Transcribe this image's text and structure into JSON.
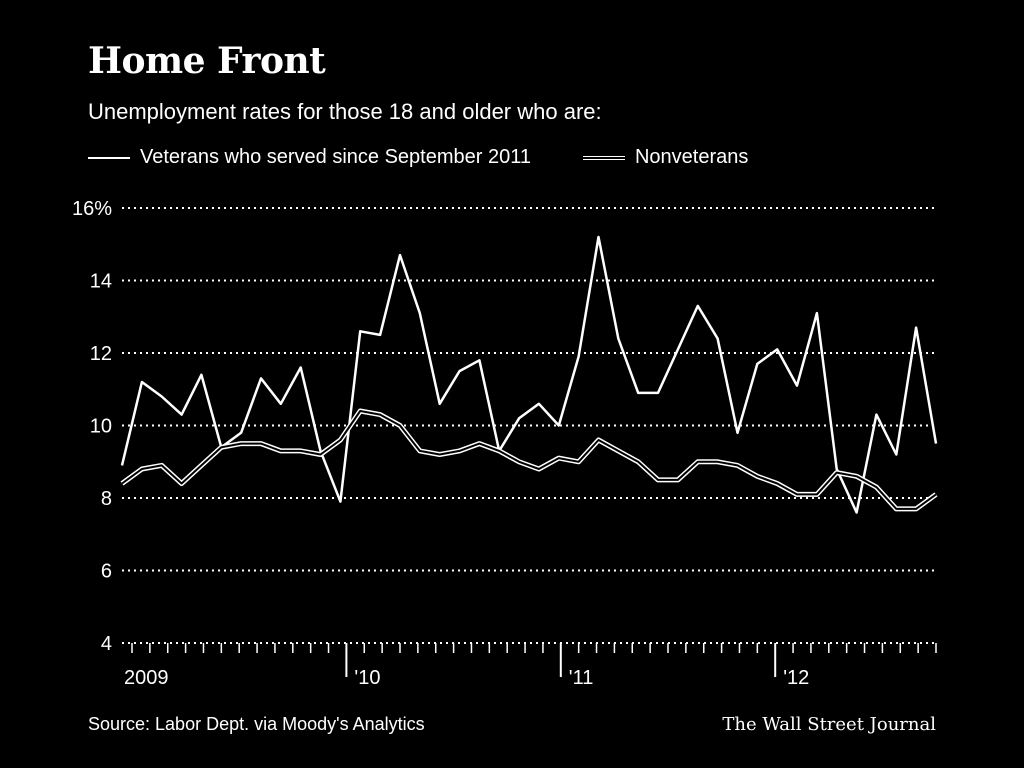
{
  "title": "Home Front",
  "subtitle": "Unemployment rates for those 18 and older who are:",
  "legend": {
    "veterans": "Veterans who served since September 2011",
    "nonveterans": "Nonveterans"
  },
  "source": "Source: Labor Dept. via Moody's Analytics",
  "brand": "The Wall Street Journal",
  "chart_data": {
    "type": "line",
    "title": "Home Front",
    "subtitle": "Unemployment rates for those 18 and older who are:",
    "ylim": [
      4,
      16
    ],
    "y_ticks": [
      4,
      6,
      8,
      10,
      12,
      14,
      16
    ],
    "y_tick_labels": [
      "4",
      "6",
      "8",
      "10",
      "12",
      "14",
      "16%"
    ],
    "x_year_labels": [
      {
        "label": "2009",
        "month_index": 0
      },
      {
        "label": "'10",
        "month_index": 12
      },
      {
        "label": "'11",
        "month_index": 24
      },
      {
        "label": "'12",
        "month_index": 36
      }
    ],
    "x_months": 45,
    "grid": true,
    "legend_position": "top",
    "series": [
      {
        "name": "Veterans who served since September 2011",
        "values": [
          8.9,
          11.2,
          10.8,
          10.3,
          11.4,
          9.4,
          9.8,
          11.3,
          10.6,
          11.6,
          9.3,
          7.9,
          12.6,
          12.5,
          14.7,
          13.1,
          10.6,
          11.5,
          11.8,
          9.3,
          10.2,
          10.6,
          10.0,
          11.9,
          15.2,
          12.4,
          10.9,
          10.9,
          12.1,
          13.3,
          12.4,
          9.8,
          11.7,
          12.1,
          11.1,
          13.1,
          8.8,
          7.6,
          10.3,
          9.2,
          12.7,
          9.5
        ],
        "color": "#ffffff"
      },
      {
        "name": "Nonveterans",
        "values": [
          8.4,
          8.8,
          8.9,
          8.4,
          8.9,
          9.4,
          9.5,
          9.5,
          9.3,
          9.3,
          9.2,
          9.6,
          10.4,
          10.3,
          10.0,
          9.3,
          9.2,
          9.3,
          9.5,
          9.3,
          9.0,
          8.8,
          9.1,
          9.0,
          9.6,
          9.3,
          9.0,
          8.5,
          8.5,
          9.0,
          9.0,
          8.9,
          8.6,
          8.4,
          8.1,
          8.1,
          8.7,
          8.6,
          8.3,
          7.7,
          7.7,
          8.1
        ],
        "color": "#ffffff"
      }
    ]
  }
}
